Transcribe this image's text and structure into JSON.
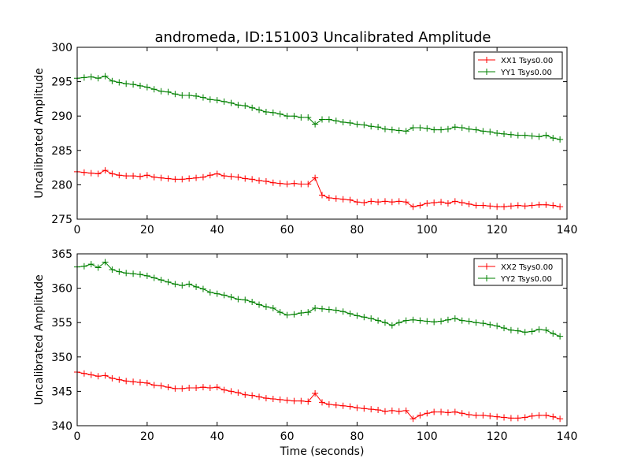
{
  "title": "andromeda, ID:151003 Uncalibrated Amplitude",
  "colors": {
    "xx": "#ff0000",
    "yy": "#008000",
    "axis": "#000000"
  },
  "chart_data": [
    {
      "type": "line",
      "marker": "plus",
      "title": "andromeda, ID:151003 Uncalibrated Amplitude",
      "xlabel": "",
      "ylabel": "Uncalibrated Amplitude",
      "xlim": [
        0,
        140
      ],
      "ylim": [
        275,
        300
      ],
      "xticks": [
        0,
        20,
        40,
        60,
        80,
        100,
        120,
        140
      ],
      "yticks": [
        275,
        280,
        285,
        290,
        295,
        300
      ],
      "grid": false,
      "legend": "top-right",
      "x": [
        0,
        2,
        4,
        6,
        8,
        10,
        12,
        14,
        16,
        18,
        20,
        22,
        24,
        26,
        28,
        30,
        32,
        34,
        36,
        38,
        40,
        42,
        44,
        46,
        48,
        50,
        52,
        54,
        56,
        58,
        60,
        62,
        64,
        66,
        68,
        70,
        72,
        74,
        76,
        78,
        80,
        82,
        84,
        86,
        88,
        90,
        92,
        94,
        96,
        98,
        100,
        102,
        104,
        106,
        108,
        110,
        112,
        114,
        116,
        118,
        120,
        122,
        124,
        126,
        128,
        130,
        132,
        134,
        136,
        138
      ],
      "series": [
        {
          "name": "XX1 Tsys0.00",
          "values": [
            281.9,
            281.8,
            281.7,
            281.6,
            282.1,
            281.6,
            281.4,
            281.3,
            281.3,
            281.2,
            281.4,
            281.1,
            281.0,
            280.9,
            280.8,
            280.8,
            280.9,
            281.0,
            281.1,
            281.4,
            281.6,
            281.3,
            281.2,
            281.1,
            280.9,
            280.8,
            280.6,
            280.5,
            280.3,
            280.2,
            280.1,
            280.2,
            280.1,
            280.1,
            281.0,
            278.5,
            278.1,
            278.0,
            277.9,
            277.8,
            277.5,
            277.4,
            277.6,
            277.5,
            277.6,
            277.5,
            277.6,
            277.5,
            276.8,
            277.0,
            277.3,
            277.4,
            277.5,
            277.3,
            277.6,
            277.4,
            277.2,
            277.0,
            277.0,
            276.9,
            276.8,
            276.8,
            276.9,
            277.0,
            276.9,
            277.0,
            277.1,
            277.1,
            277.0,
            276.8
          ]
        },
        {
          "name": "YY1 Tsys0.00",
          "values": [
            295.5,
            295.6,
            295.7,
            295.5,
            295.8,
            295.1,
            294.9,
            294.7,
            294.6,
            294.4,
            294.2,
            293.9,
            293.6,
            293.5,
            293.2,
            293.0,
            293.0,
            292.9,
            292.7,
            292.4,
            292.3,
            292.1,
            291.9,
            291.6,
            291.5,
            291.2,
            290.9,
            290.6,
            290.5,
            290.3,
            290.0,
            290.0,
            289.8,
            289.8,
            288.8,
            289.5,
            289.5,
            289.3,
            289.1,
            289.0,
            288.8,
            288.7,
            288.5,
            288.4,
            288.1,
            288.0,
            287.9,
            287.8,
            288.3,
            288.3,
            288.2,
            288.0,
            288.0,
            288.1,
            288.4,
            288.3,
            288.1,
            288.0,
            287.8,
            287.7,
            287.5,
            287.4,
            287.3,
            287.2,
            287.2,
            287.1,
            287.0,
            287.2,
            286.8,
            286.6
          ]
        }
      ]
    },
    {
      "type": "line",
      "marker": "plus",
      "title": "",
      "xlabel": "Time (seconds)",
      "ylabel": "Uncalibrated Amplitude",
      "xlim": [
        0,
        140
      ],
      "ylim": [
        340,
        365
      ],
      "xticks": [
        0,
        20,
        40,
        60,
        80,
        100,
        120,
        140
      ],
      "yticks": [
        340,
        345,
        350,
        355,
        360,
        365
      ],
      "grid": false,
      "legend": "top-right",
      "x": [
        0,
        2,
        4,
        6,
        8,
        10,
        12,
        14,
        16,
        18,
        20,
        22,
        24,
        26,
        28,
        30,
        32,
        34,
        36,
        38,
        40,
        42,
        44,
        46,
        48,
        50,
        52,
        54,
        56,
        58,
        60,
        62,
        64,
        66,
        68,
        70,
        72,
        74,
        76,
        78,
        80,
        82,
        84,
        86,
        88,
        90,
        92,
        94,
        96,
        98,
        100,
        102,
        104,
        106,
        108,
        110,
        112,
        114,
        116,
        118,
        120,
        122,
        124,
        126,
        128,
        130,
        132,
        134,
        136,
        138
      ],
      "series": [
        {
          "name": "XX2 Tsys0.00",
          "values": [
            347.8,
            347.6,
            347.4,
            347.2,
            347.3,
            346.9,
            346.7,
            346.5,
            346.4,
            346.3,
            346.2,
            345.9,
            345.8,
            345.6,
            345.4,
            345.4,
            345.5,
            345.5,
            345.6,
            345.5,
            345.6,
            345.2,
            345.0,
            344.8,
            344.5,
            344.4,
            344.2,
            344.0,
            343.9,
            343.8,
            343.7,
            343.6,
            343.6,
            343.5,
            344.7,
            343.4,
            343.1,
            343.0,
            342.9,
            342.8,
            342.6,
            342.5,
            342.4,
            342.3,
            342.1,
            342.2,
            342.1,
            342.2,
            341.0,
            341.5,
            341.8,
            342.0,
            342.0,
            341.9,
            342.0,
            341.8,
            341.6,
            341.5,
            341.5,
            341.4,
            341.3,
            341.2,
            341.1,
            341.1,
            341.2,
            341.4,
            341.5,
            341.5,
            341.3,
            341.0
          ]
        },
        {
          "name": "YY2 Tsys0.00",
          "values": [
            363.1,
            363.2,
            363.5,
            363.0,
            363.8,
            362.7,
            362.4,
            362.2,
            362.1,
            362.0,
            361.8,
            361.5,
            361.2,
            360.9,
            360.6,
            360.4,
            360.6,
            360.2,
            359.9,
            359.4,
            359.2,
            359.0,
            358.7,
            358.4,
            358.3,
            358.0,
            357.6,
            357.3,
            357.1,
            356.5,
            356.1,
            356.2,
            356.4,
            356.5,
            357.1,
            357.0,
            356.9,
            356.8,
            356.6,
            356.3,
            356.0,
            355.8,
            355.6,
            355.3,
            355.0,
            354.6,
            355.0,
            355.3,
            355.4,
            355.3,
            355.2,
            355.1,
            355.2,
            355.4,
            355.6,
            355.3,
            355.2,
            355.0,
            354.9,
            354.7,
            354.5,
            354.2,
            353.9,
            353.8,
            353.6,
            353.7,
            354.0,
            353.9,
            353.4,
            353.0
          ]
        }
      ]
    }
  ]
}
